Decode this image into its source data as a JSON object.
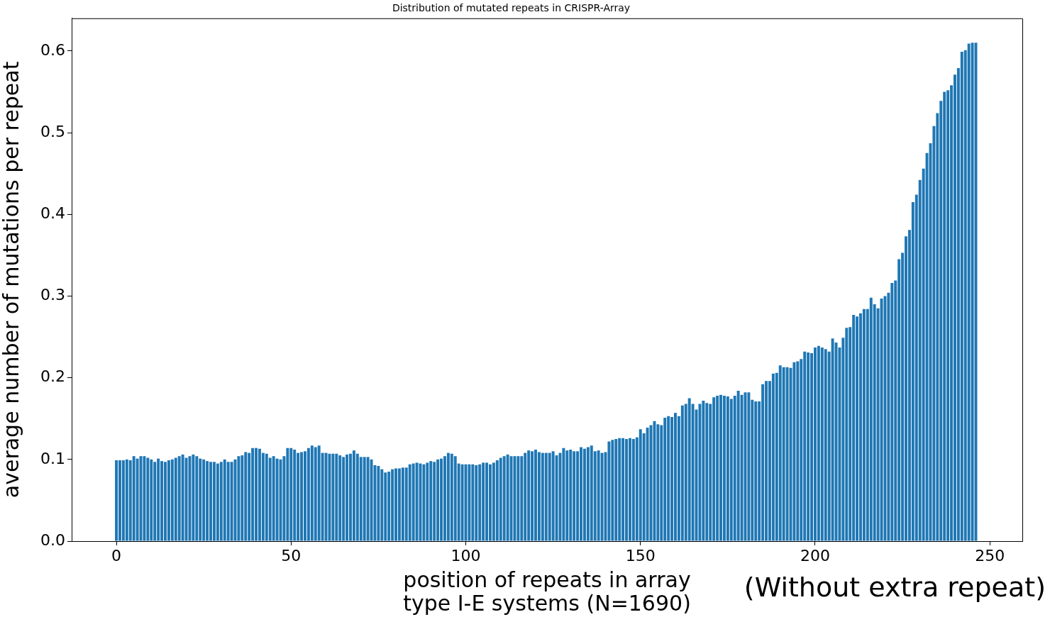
{
  "chart_data": {
    "type": "bar",
    "title": "Distribution of mutated repeats in CRISPR-Array",
    "xlabel": "position of repeats in array\ntype I-E systems (N=1690)",
    "ylabel": "average number of mutations per repeat",
    "annotations": [
      "(Without extra repeat)"
    ],
    "color": "#1f77b4",
    "x": [
      0,
      1,
      2,
      3,
      4,
      5,
      6,
      7,
      8,
      9,
      10,
      11,
      12,
      13,
      14,
      15,
      16,
      17,
      18,
      19,
      20,
      21,
      22,
      23,
      24,
      25,
      26,
      27,
      28,
      29,
      30,
      31,
      32,
      33,
      34,
      35,
      36,
      37,
      38,
      39,
      40,
      41,
      42,
      43,
      44,
      45,
      46,
      47,
      48,
      49,
      50,
      51,
      52,
      53,
      54,
      55,
      56,
      57,
      58,
      59,
      60,
      61,
      62,
      63,
      64,
      65,
      66,
      67,
      68,
      69,
      70,
      71,
      72,
      73,
      74,
      75,
      76,
      77,
      78,
      79,
      80,
      81,
      82,
      83,
      84,
      85,
      86,
      87,
      88,
      89,
      90,
      91,
      92,
      93,
      94,
      95,
      96,
      97,
      98,
      99,
      100,
      101,
      102,
      103,
      104,
      105,
      106,
      107,
      108,
      109,
      110,
      111,
      112,
      113,
      114,
      115,
      116,
      117,
      118,
      119,
      120,
      121,
      122,
      123,
      124,
      125,
      126,
      127,
      128,
      129,
      130,
      131,
      132,
      133,
      134,
      135,
      136,
      137,
      138,
      139,
      140,
      141,
      142,
      143,
      144,
      145,
      146,
      147,
      148,
      149,
      150,
      151,
      152,
      153,
      154,
      155,
      156,
      157,
      158,
      159,
      160,
      161,
      162,
      163,
      164,
      165,
      166,
      167,
      168,
      169,
      170,
      171,
      172,
      173,
      174,
      175,
      176,
      177,
      178,
      179,
      180,
      181,
      182,
      183,
      184,
      185,
      186,
      187,
      188,
      189,
      190,
      191,
      192,
      193,
      194,
      195,
      196,
      197,
      198,
      199,
      200,
      201,
      202,
      203,
      204,
      205,
      206,
      207,
      208,
      209,
      210,
      211,
      212,
      213,
      214,
      215,
      216,
      217,
      218,
      219,
      220,
      221,
      222,
      223,
      224,
      225,
      226,
      227,
      228,
      229,
      230,
      231,
      232,
      233,
      234,
      235,
      236,
      237,
      238,
      239,
      240,
      241,
      242,
      243,
      244,
      245,
      246
    ],
    "values": [
      0.099,
      0.099,
      0.099,
      0.1,
      0.099,
      0.104,
      0.101,
      0.104,
      0.104,
      0.102,
      0.1,
      0.097,
      0.101,
      0.098,
      0.097,
      0.099,
      0.1,
      0.102,
      0.104,
      0.106,
      0.102,
      0.104,
      0.106,
      0.104,
      0.101,
      0.1,
      0.098,
      0.097,
      0.097,
      0.095,
      0.097,
      0.1,
      0.097,
      0.097,
      0.1,
      0.104,
      0.105,
      0.109,
      0.108,
      0.114,
      0.114,
      0.113,
      0.108,
      0.107,
      0.102,
      0.104,
      0.101,
      0.1,
      0.104,
      0.114,
      0.114,
      0.112,
      0.108,
      0.109,
      0.11,
      0.114,
      0.117,
      0.115,
      0.117,
      0.108,
      0.108,
      0.107,
      0.107,
      0.107,
      0.105,
      0.103,
      0.106,
      0.107,
      0.111,
      0.107,
      0.103,
      0.103,
      0.103,
      0.1,
      0.093,
      0.092,
      0.088,
      0.084,
      0.085,
      0.088,
      0.089,
      0.089,
      0.09,
      0.09,
      0.094,
      0.095,
      0.096,
      0.095,
      0.094,
      0.096,
      0.098,
      0.097,
      0.1,
      0.101,
      0.104,
      0.108,
      0.107,
      0.104,
      0.095,
      0.094,
      0.094,
      0.094,
      0.094,
      0.093,
      0.094,
      0.096,
      0.096,
      0.094,
      0.096,
      0.099,
      0.102,
      0.104,
      0.106,
      0.104,
      0.104,
      0.104,
      0.104,
      0.108,
      0.111,
      0.11,
      0.112,
      0.109,
      0.108,
      0.108,
      0.108,
      0.11,
      0.105,
      0.108,
      0.114,
      0.111,
      0.112,
      0.11,
      0.11,
      0.115,
      0.113,
      0.115,
      0.117,
      0.11,
      0.111,
      0.108,
      0.109,
      0.122,
      0.124,
      0.125,
      0.126,
      0.126,
      0.125,
      0.126,
      0.125,
      0.127,
      0.137,
      0.132,
      0.139,
      0.142,
      0.147,
      0.143,
      0.142,
      0.151,
      0.153,
      0.152,
      0.157,
      0.153,
      0.166,
      0.168,
      0.175,
      0.168,
      0.161,
      0.168,
      0.172,
      0.169,
      0.168,
      0.176,
      0.178,
      0.179,
      0.178,
      0.177,
      0.174,
      0.178,
      0.184,
      0.179,
      0.182,
      0.182,
      0.173,
      0.171,
      0.171,
      0.192,
      0.196,
      0.196,
      0.205,
      0.206,
      0.215,
      0.213,
      0.213,
      0.212,
      0.219,
      0.22,
      0.223,
      0.232,
      0.231,
      0.23,
      0.237,
      0.239,
      0.237,
      0.235,
      0.232,
      0.248,
      0.243,
      0.237,
      0.249,
      0.261,
      0.262,
      0.277,
      0.275,
      0.279,
      0.284,
      0.284,
      0.298,
      0.29,
      0.285,
      0.297,
      0.3,
      0.304,
      0.316,
      0.319,
      0.345,
      0.353,
      0.373,
      0.381,
      0.415,
      0.424,
      0.442,
      0.456,
      0.475,
      0.487,
      0.508,
      0.524,
      0.539,
      0.55,
      0.552,
      0.558,
      0.571,
      0.579,
      0.599,
      0.601,
      0.609,
      0.61,
      0.61
    ],
    "xlim": [
      -12.8,
      259.3
    ],
    "xticks": [
      0,
      50,
      100,
      150,
      200,
      250
    ],
    "ylim": [
      0,
      0.64
    ],
    "yticks": [
      {
        "value": 0,
        "label": "0.0"
      },
      {
        "value": 0.1,
        "label": "0.1"
      },
      {
        "value": 0.2,
        "label": "0.2"
      },
      {
        "value": 0.3,
        "label": "0.3"
      },
      {
        "value": 0.4,
        "label": "0.4"
      },
      {
        "value": 0.5,
        "label": "0.5"
      },
      {
        "value": 0.6,
        "label": "0.6"
      }
    ]
  }
}
